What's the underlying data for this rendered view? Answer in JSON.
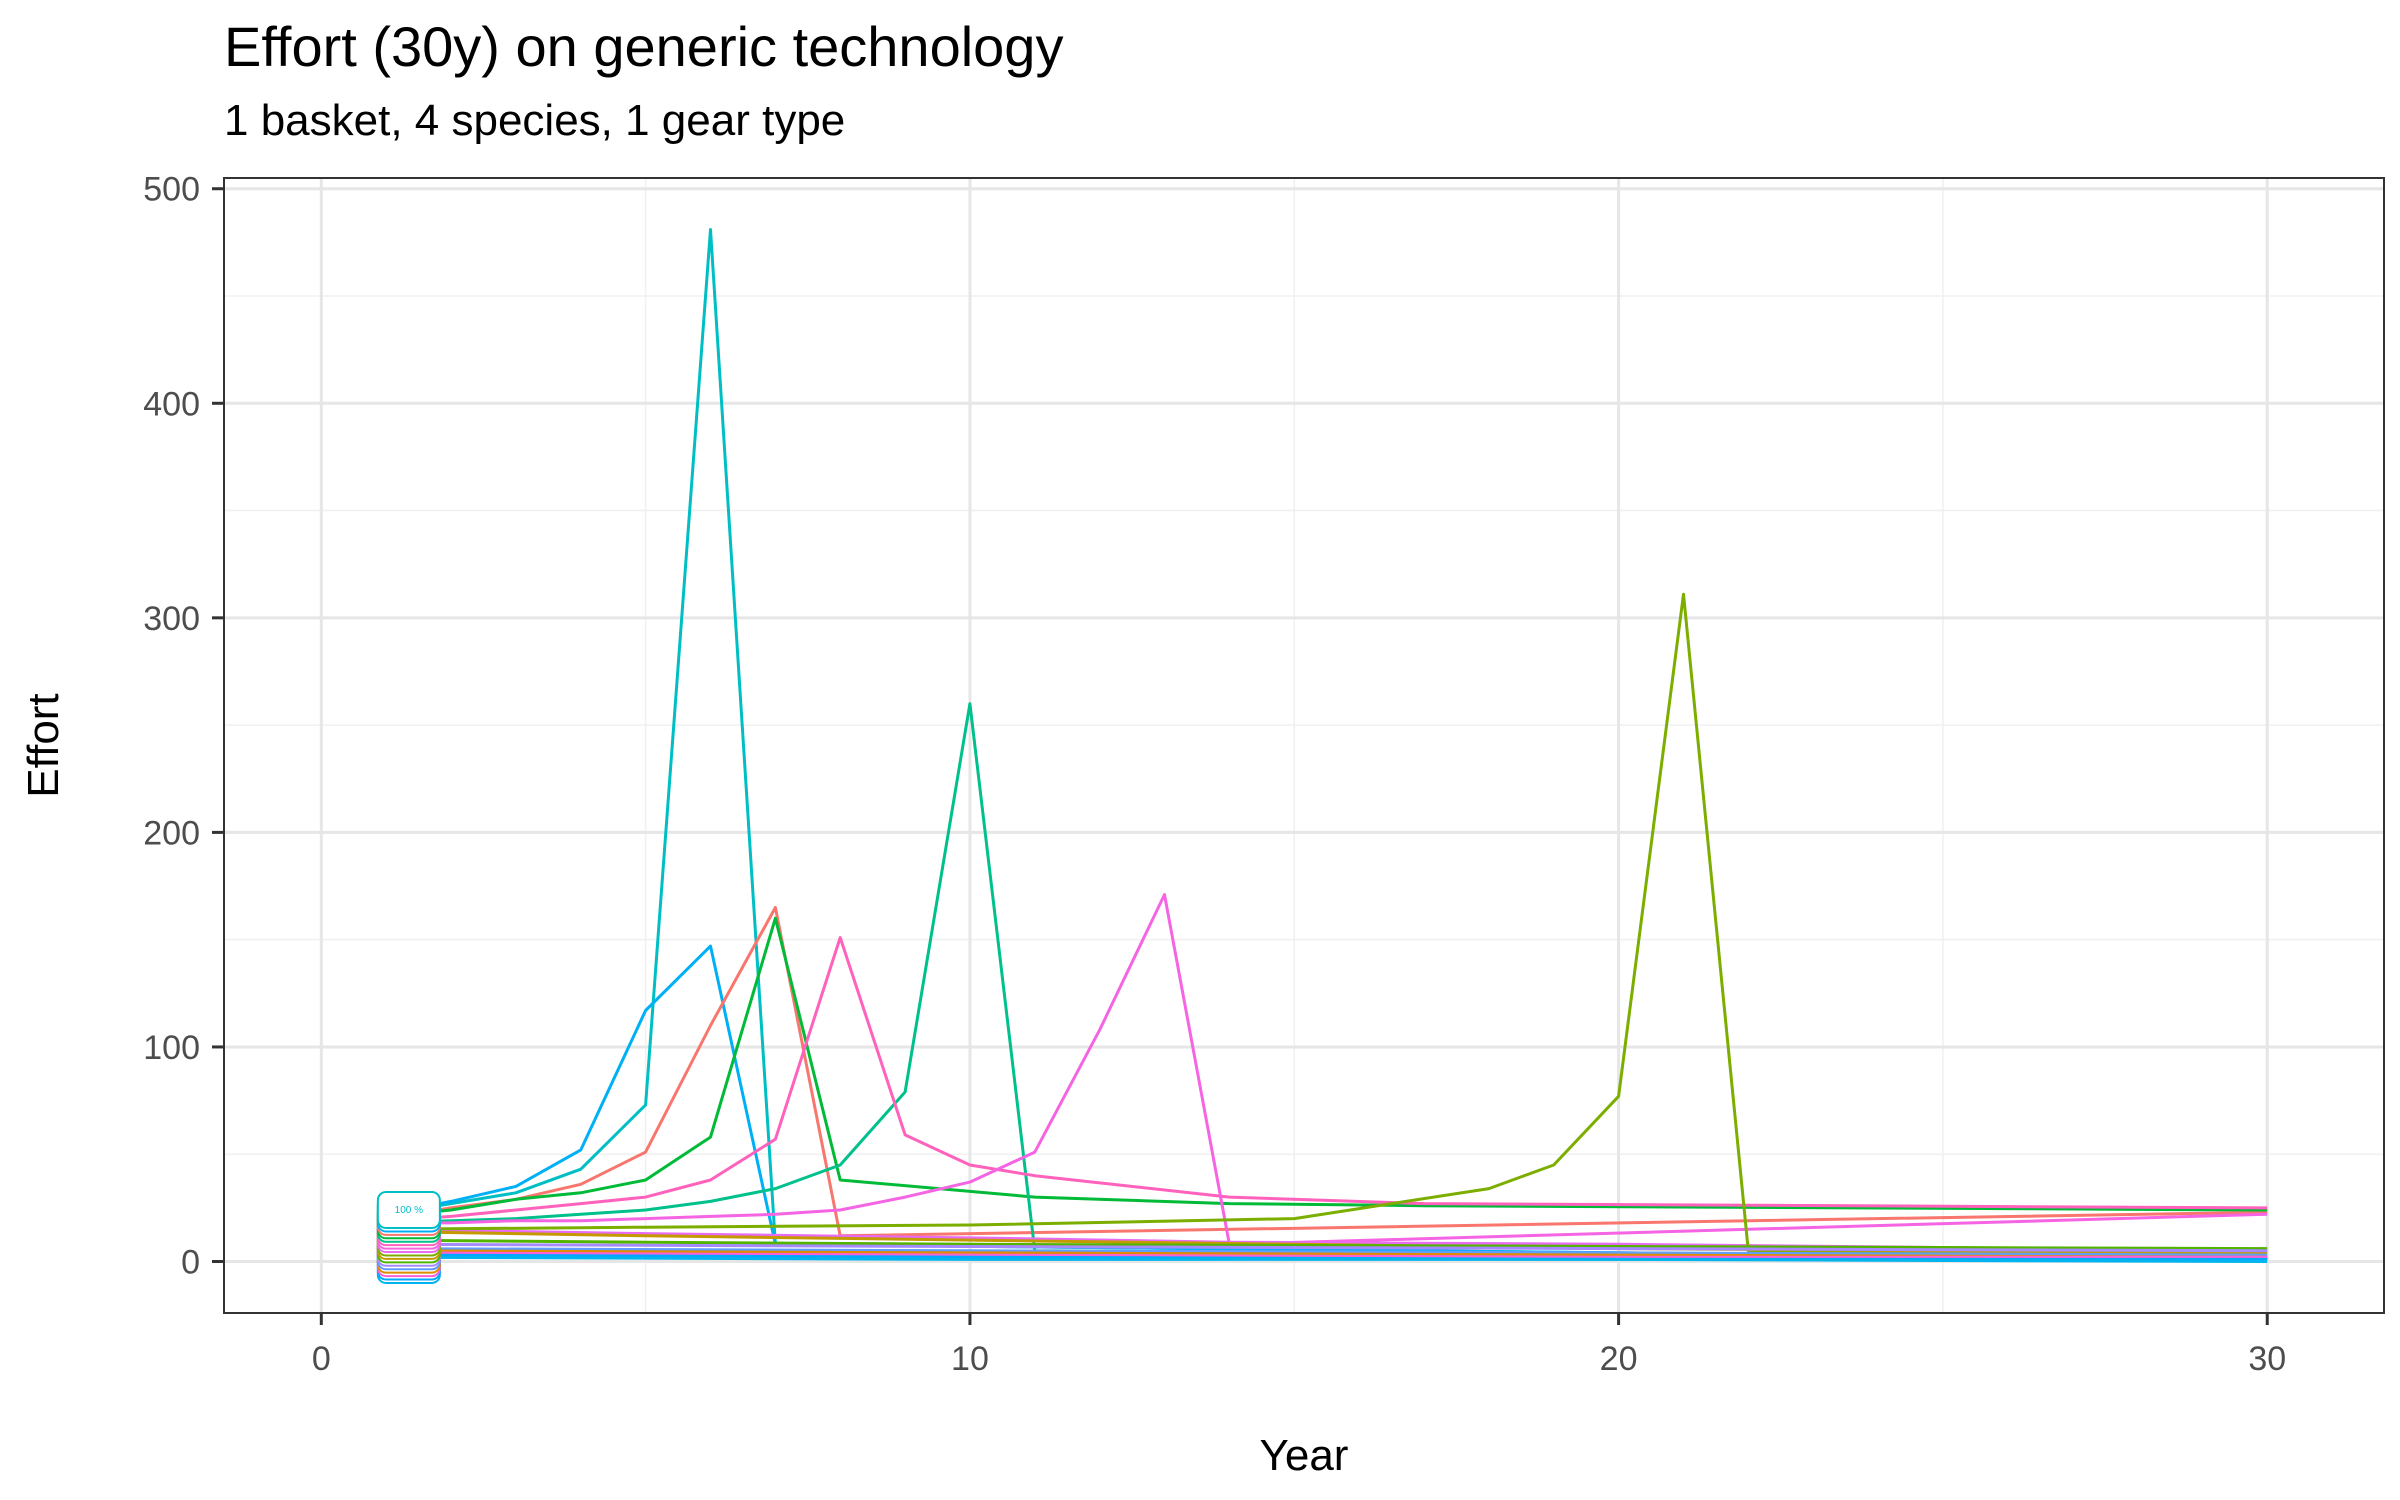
{
  "chart_data": {
    "type": "line",
    "title": "Effort (30y) on generic technology",
    "subtitle": "1 basket, 4 species, 1 gear type",
    "xlabel": "Year",
    "ylabel": "Effort",
    "xlim": [
      -1.5,
      31.8
    ],
    "ylim": [
      -24,
      505
    ],
    "xticks": [
      0,
      10,
      20,
      30
    ],
    "yticks": [
      0,
      100,
      200,
      300,
      400,
      500
    ],
    "x_minor_grid": [
      5,
      15,
      25
    ],
    "y_minor_grid": [
      50,
      150,
      250,
      350,
      450
    ],
    "grid": true,
    "legend": "none",
    "start_label": "100 %",
    "series": [
      {
        "color": "#00BFC4",
        "x": [
          1,
          2,
          3,
          4,
          5,
          6,
          7,
          30
        ],
        "values": [
          22,
          27,
          32,
          43,
          73,
          481,
          8,
          1
        ]
      },
      {
        "color": "#00B0F6",
        "x": [
          1,
          2,
          3,
          4,
          5,
          6,
          7,
          30
        ],
        "values": [
          22,
          28,
          35,
          52,
          117,
          147,
          8,
          1
        ]
      },
      {
        "color": "#F8766D",
        "x": [
          1,
          2,
          3,
          4,
          5,
          6,
          7,
          8,
          30
        ],
        "values": [
          20,
          25,
          29,
          36,
          51,
          110,
          165,
          12,
          23
        ]
      },
      {
        "color": "#00BA38",
        "x": [
          1,
          2,
          3,
          4,
          5,
          6,
          7,
          8,
          11,
          14,
          17,
          30
        ],
        "values": [
          21,
          24,
          29,
          32,
          38,
          58,
          160,
          38,
          30,
          27,
          26,
          24
        ]
      },
      {
        "color": "#00C08B",
        "x": [
          1,
          2,
          3,
          4,
          5,
          6,
          7,
          8,
          9,
          10,
          11,
          30
        ],
        "values": [
          18,
          19,
          20,
          22,
          24,
          28,
          34,
          45,
          79,
          260,
          5,
          1
        ]
      },
      {
        "color": "#FF62BC",
        "x": [
          1,
          2,
          3,
          4,
          5,
          6,
          7,
          8,
          9,
          10,
          11,
          14,
          17,
          30
        ],
        "values": [
          19,
          21,
          24,
          27,
          30,
          38,
          57,
          151,
          59,
          45,
          40,
          30,
          27,
          25
        ]
      },
      {
        "color": "#F564E3",
        "x": [
          1,
          2,
          3,
          4,
          5,
          6,
          7,
          8,
          9,
          10,
          11,
          12,
          13,
          14,
          30
        ],
        "values": [
          18,
          18,
          19,
          19,
          20,
          21,
          22,
          24,
          30,
          37,
          51,
          108,
          171,
          8,
          22
        ]
      },
      {
        "color": "#E76BF3",
        "x": [
          1,
          5,
          10,
          14,
          20,
          30
        ],
        "values": [
          15,
          13,
          11,
          9,
          8,
          5
        ]
      },
      {
        "color": "#7CAE00",
        "x": [
          1,
          5,
          10,
          15,
          18,
          19,
          20,
          21,
          22,
          30
        ],
        "values": [
          15,
          16,
          17,
          20,
          34,
          45,
          77,
          311,
          5,
          2
        ]
      },
      {
        "color": "#C49A00",
        "x": [
          1,
          5,
          10,
          15,
          20,
          30
        ],
        "values": [
          14,
          12,
          10,
          8,
          6,
          4
        ]
      },
      {
        "color": "#53B400",
        "x": [
          1,
          5,
          10,
          20,
          30
        ],
        "values": [
          10,
          9,
          8,
          7,
          6
        ]
      },
      {
        "color": "#A58AFF",
        "x": [
          1,
          10,
          20,
          30
        ],
        "values": [
          8,
          7,
          6,
          5
        ]
      },
      {
        "color": "#619CFF",
        "x": [
          1,
          10,
          20,
          30
        ],
        "values": [
          6,
          5,
          4,
          3
        ]
      },
      {
        "color": "#DE8C00",
        "x": [
          1,
          10,
          20,
          30
        ],
        "values": [
          5,
          4,
          3,
          2
        ]
      },
      {
        "color": "#FB61D7",
        "x": [
          1,
          10,
          20,
          30
        ],
        "values": [
          4,
          3,
          2,
          2
        ]
      },
      {
        "color": "#00A9FF",
        "x": [
          1,
          10,
          20,
          30
        ],
        "values": [
          3,
          2,
          1,
          1
        ]
      },
      {
        "color": "#00B4EF",
        "x": [
          1,
          10,
          20,
          30
        ],
        "values": [
          2,
          1,
          1,
          0
        ]
      }
    ]
  }
}
